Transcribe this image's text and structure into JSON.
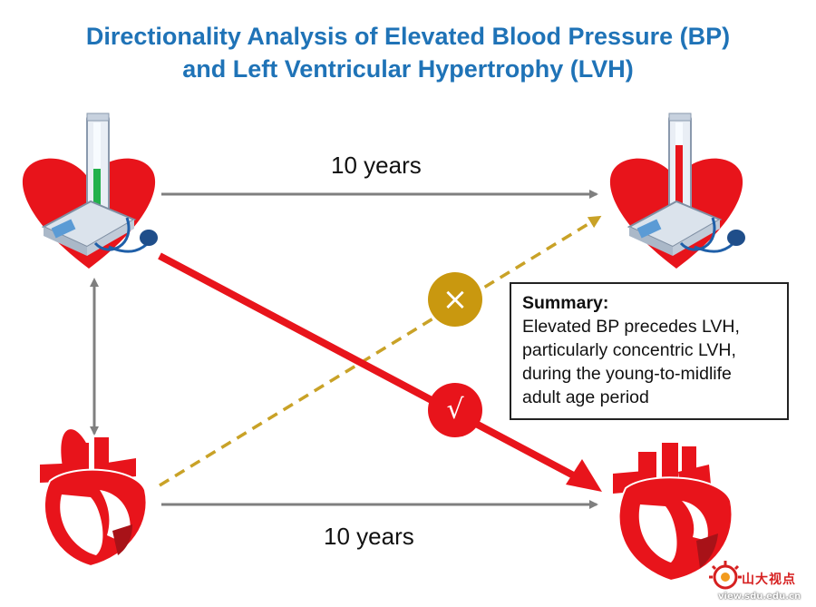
{
  "title": {
    "line1": "Directionality Analysis of Elevated Blood Pressure (BP)",
    "line2": "and Left Ventricular Hypertrophy (LVH)"
  },
  "arrows": {
    "top_label": "10 years",
    "bottom_label": "10 years",
    "cross_mark": "×",
    "check_mark": "√"
  },
  "summary": {
    "heading": "Summary:",
    "lines": [
      "Elevated BP precedes LVH,",
      "particularly concentric LVH,",
      "during the young-to-midlife",
      "adult age period"
    ]
  },
  "watermark": {
    "chinese": "山大视点",
    "url": "view.sdu.edu.cn"
  },
  "colors": {
    "title": "#1f73b7",
    "red_arrow": "#e8141b",
    "dashed_arrow": "#c9a227",
    "gray_arrow": "#7f7f7f",
    "cross_circle": "#c9980f",
    "check_circle": "#e8141b"
  }
}
